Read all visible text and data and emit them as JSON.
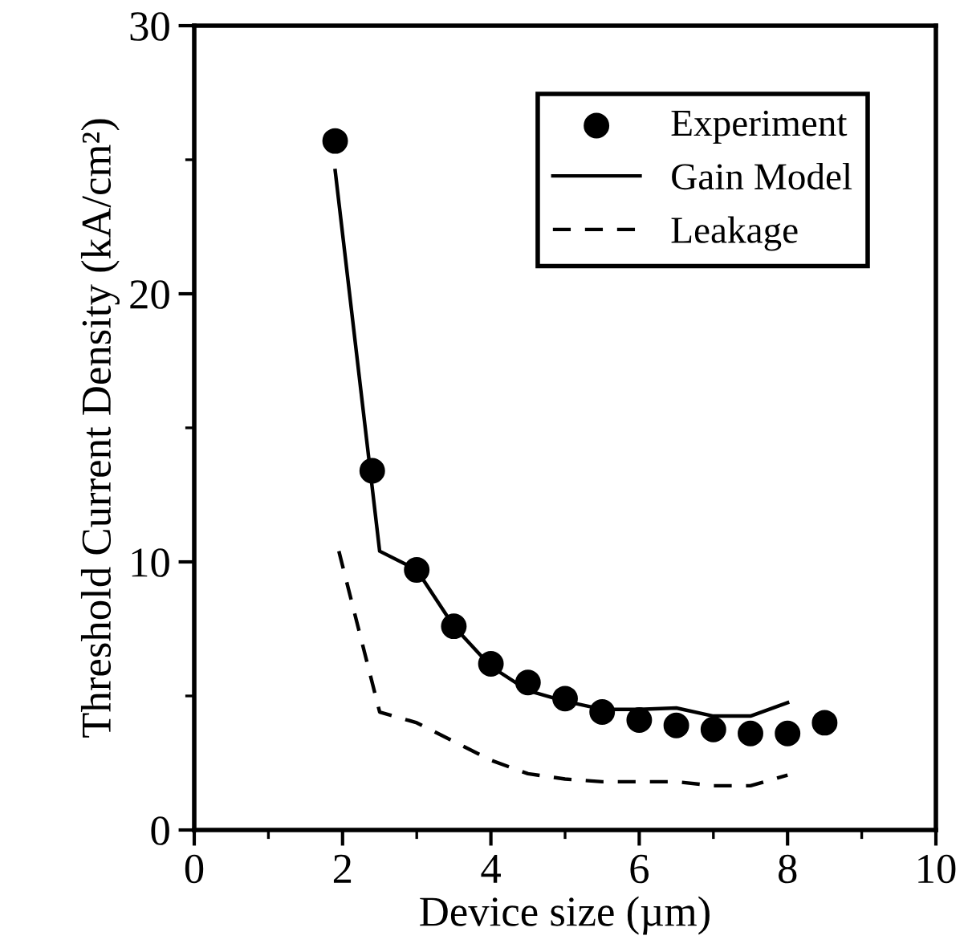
{
  "chart_data": {
    "type": "line",
    "xlabel": "Device size (µm)",
    "ylabel": "Threshold Current Density (kA/cm²)",
    "xlim": [
      0,
      10
    ],
    "ylim": [
      0,
      30
    ],
    "xticks": [
      0,
      {
        "value": 1,
        "label": null
      },
      2,
      {
        "value": 3,
        "label": null
      },
      4,
      {
        "value": 5,
        "label": null
      },
      6,
      {
        "value": 7,
        "label": null
      },
      8,
      {
        "value": 9,
        "label": null
      },
      10
    ],
    "yticks": [
      0,
      {
        "value": 5,
        "label": null
      },
      10,
      {
        "value": 15,
        "label": null
      },
      20,
      {
        "value": 25,
        "label": null
      },
      30
    ],
    "grid": false,
    "legend": "top right",
    "series": [
      {
        "name": "Experiment",
        "type": "scatter",
        "marker": "circle",
        "color": "#000000",
        "x": [
          1.9,
          2.4,
          3,
          3.5,
          4,
          4.5,
          5,
          5.5,
          6,
          6.5,
          7,
          7.5,
          8,
          8.5
        ],
        "values": [
          25.7,
          13.4,
          9.7,
          7.6,
          6.2,
          5.5,
          4.9,
          4.4,
          4.1,
          3.9,
          3.75,
          3.6,
          3.6,
          4.0
        ]
      },
      {
        "name": "Gain Model",
        "line_style": "solid",
        "color": "#000000",
        "x": [
          1.9,
          2.5,
          3,
          3.5,
          4,
          4.5,
          5,
          5.5,
          6,
          6.5,
          7,
          7.5,
          8
        ],
        "values": [
          24.6,
          10.4,
          9.7,
          7.6,
          6.1,
          5.2,
          4.8,
          4.5,
          4.5,
          4.55,
          4.25,
          4.25,
          4.75
        ]
      },
      {
        "name": "Leakage",
        "line_style": "dashed",
        "color": "#000000",
        "x": [
          1.95,
          2.5,
          3,
          3.5,
          4,
          4.5,
          5,
          5.5,
          6.5,
          7,
          7.5,
          8
        ],
        "values": [
          10.4,
          4.4,
          4.0,
          3.3,
          2.6,
          2.1,
          1.9,
          1.8,
          1.8,
          1.65,
          1.65,
          2.05
        ]
      }
    ]
  }
}
